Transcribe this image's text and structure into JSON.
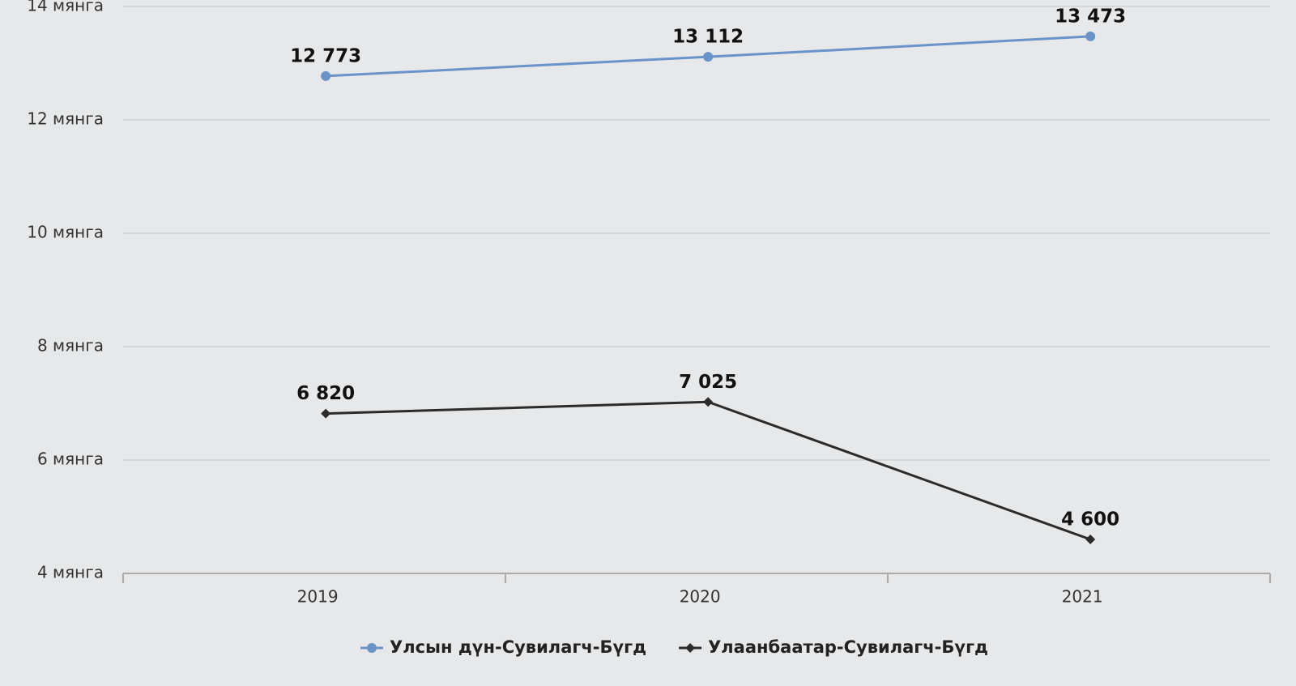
{
  "chart_data": {
    "type": "line",
    "categories": [
      "2019",
      "2020",
      "2021"
    ],
    "series": [
      {
        "name": "Улсын дүн-Сувилагч-Бүгд",
        "color": "#6a93c9",
        "marker": "circle",
        "values": [
          12773,
          13112,
          13473
        ],
        "value_labels": [
          "12 773",
          "13 112",
          "13 473"
        ]
      },
      {
        "name": "Улаанбаатар-Сувилагч-Бүгд",
        "color": "#2b2b2b",
        "marker": "diamond",
        "values": [
          6820,
          7025,
          4600
        ],
        "value_labels": [
          "6 820",
          "7 025",
          "4 600"
        ]
      }
    ],
    "ylim": [
      4000,
      14000
    ],
    "yticks": [
      {
        "value": 4000,
        "label": "4 мянга"
      },
      {
        "value": 6000,
        "label": "6 мянга"
      },
      {
        "value": 8000,
        "label": "8 мянга"
      },
      {
        "value": 10000,
        "label": "10 мянга"
      },
      {
        "value": 12000,
        "label": "12 мянга"
      },
      {
        "value": 14000,
        "label": "14 мянга"
      }
    ],
    "grid": true,
    "legend": "bottom"
  }
}
